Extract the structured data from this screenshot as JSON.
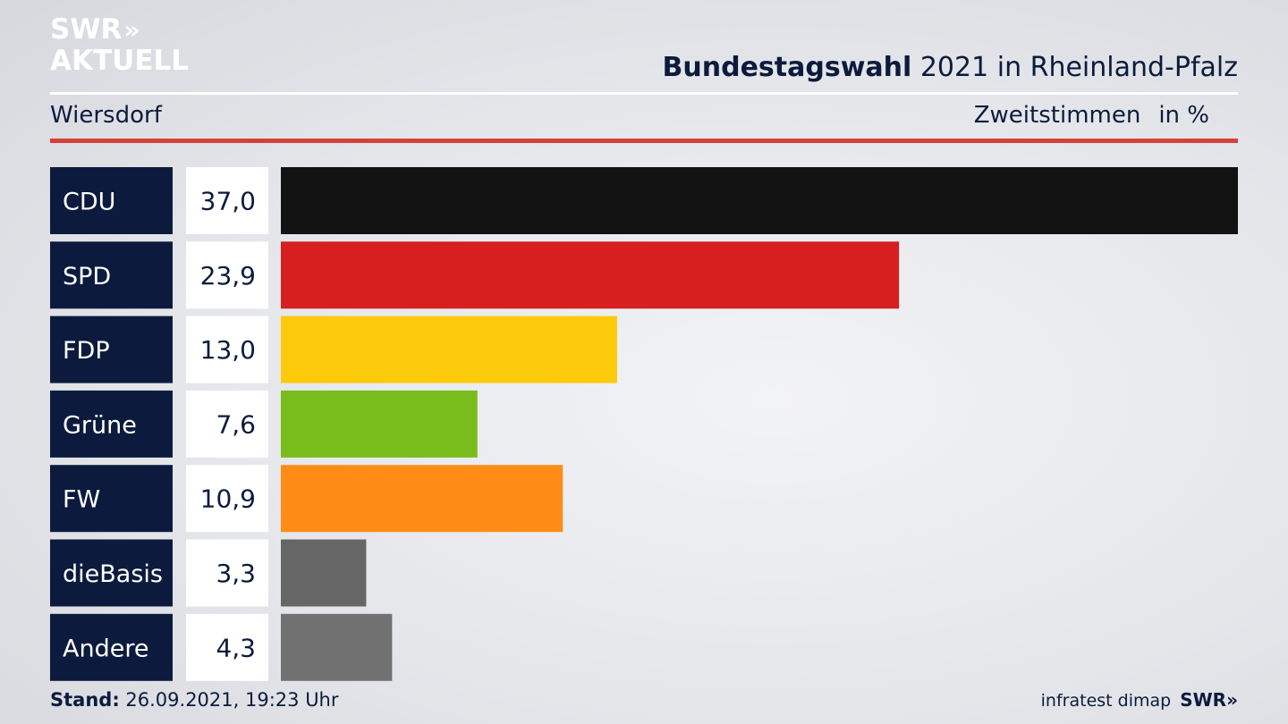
{
  "logo": {
    "line1": "SWR",
    "arrows": "»",
    "line2": "AKTUELL"
  },
  "header": {
    "title_bold": "Bundestagswahl",
    "title_rest": "2021 in Rheinland-Pfalz"
  },
  "subheader": {
    "location": "Wiersdorf",
    "measure": "Zweitstimmen",
    "unit": "in %"
  },
  "footer": {
    "stand_label": "Stand:",
    "stand_value": "26.09.2021, 19:23 Uhr",
    "source": "infratest dimap",
    "brand": "SWR»"
  },
  "chart_data": {
    "type": "bar",
    "orientation": "horizontal",
    "categories": [
      "CDU",
      "SPD",
      "FDP",
      "Grüne",
      "FW",
      "dieBasis",
      "Andere"
    ],
    "values": [
      37.0,
      23.9,
      13.0,
      7.6,
      10.9,
      3.3,
      4.3
    ],
    "value_labels": [
      "37,0",
      "23,9",
      "13,0",
      "7,6",
      "10,9",
      "3,3",
      "4,3"
    ],
    "colors": [
      "#121212",
      "#d61f1f",
      "#fcca0a",
      "#78bd1c",
      "#ff8c17",
      "#666666",
      "#717171"
    ],
    "xlim": [
      0,
      37.0
    ],
    "grid": false,
    "legend": "none",
    "label_box_color": "#0c1b3d",
    "value_box_color": "#ffffff"
  }
}
